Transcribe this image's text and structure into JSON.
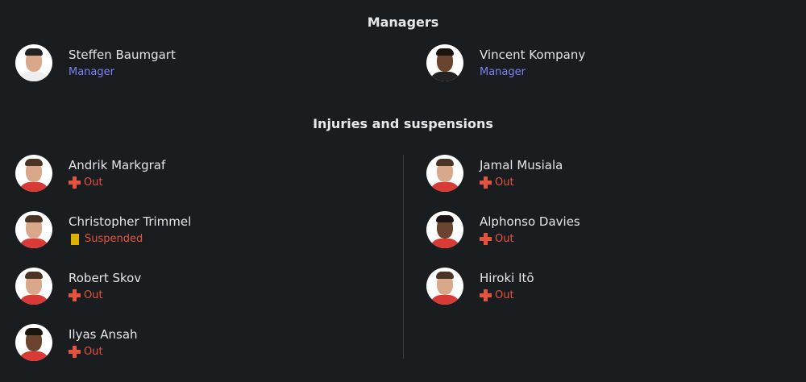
{
  "managers": {
    "title": "Managers",
    "items": [
      {
        "name": "Steffen Baumgart",
        "role": "Manager"
      },
      {
        "name": "Vincent Kompany",
        "role": "Manager"
      }
    ]
  },
  "injuries": {
    "title": "Injuries and suspensions",
    "left": [
      {
        "name": "Andrik Markgraf",
        "status": "Out",
        "icon": "injury-cross-icon"
      },
      {
        "name": "Christopher Trimmel",
        "status": "Suspended",
        "icon": "yellow-card-icon"
      },
      {
        "name": "Robert Skov",
        "status": "Out",
        "icon": "injury-cross-icon"
      },
      {
        "name": "Ilyas Ansah",
        "status": "Out",
        "icon": "injury-cross-icon"
      }
    ],
    "right": [
      {
        "name": "Jamal Musiala",
        "status": "Out",
        "icon": "injury-cross-icon"
      },
      {
        "name": "Alphonso Davies",
        "status": "Out",
        "icon": "injury-cross-icon"
      },
      {
        "name": "Hiroki Itō",
        "status": "Out",
        "icon": "injury-cross-icon"
      }
    ]
  },
  "colors": {
    "background": "#1a1d20",
    "role": "#7c80f2",
    "out": "#e5533f",
    "yellow_card": "#dfb000"
  }
}
